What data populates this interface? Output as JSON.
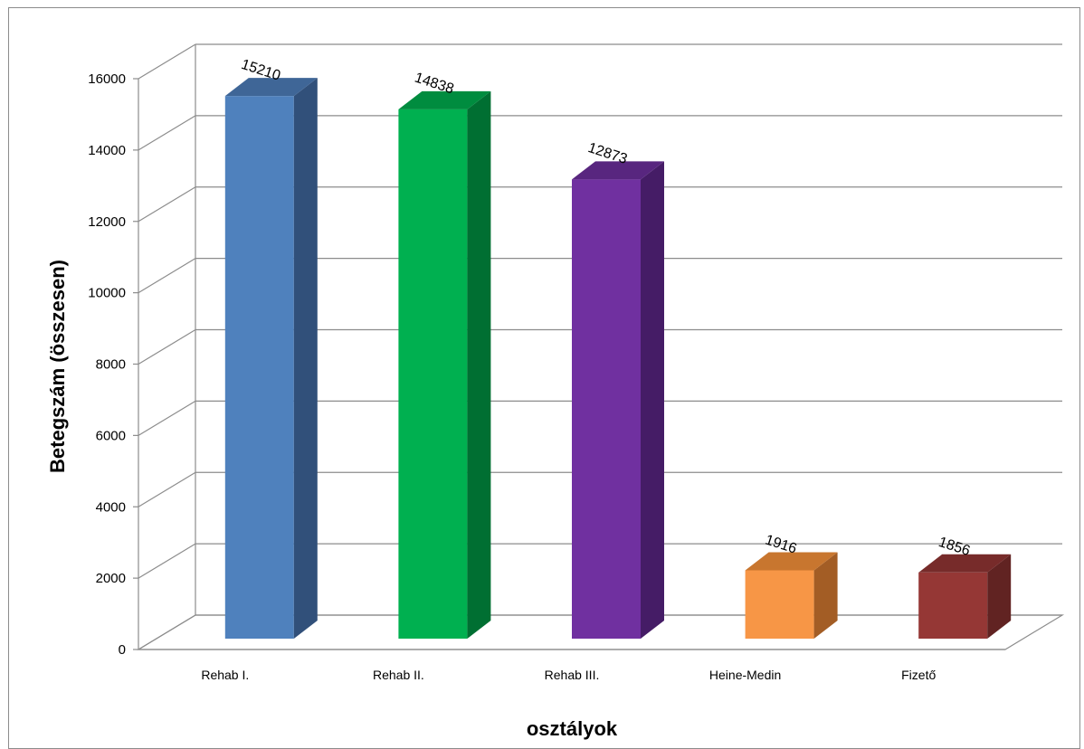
{
  "chart_data": {
    "type": "bar",
    "title": "",
    "xlabel": "osztályok",
    "ylabel": "Betegszám (összesen)",
    "categories": [
      "Rehab I.",
      "Rehab II.",
      "Rehab III.",
      "Heine-Medin",
      "Fizető"
    ],
    "values": [
      15210,
      14838,
      12873,
      1916,
      1856
    ],
    "data_labels": [
      "15210",
      "14838",
      "12873",
      "1916",
      "1856"
    ],
    "yticks": [
      0,
      2000,
      4000,
      6000,
      8000,
      10000,
      12000,
      14000,
      16000
    ],
    "ytick_labels": [
      "0",
      "2000",
      "4000",
      "6000",
      "8000",
      "10000",
      "12000",
      "14000",
      "16000"
    ],
    "ylim": [
      0,
      16000
    ],
    "grid": true,
    "legend": "none",
    "style": "3d-column",
    "colors": {
      "front": [
        "#4f81bd",
        "#00b050",
        "#7030a0",
        "#f79646",
        "#953735"
      ],
      "side": [
        "#31507a",
        "#006f32",
        "#451c66",
        "#a35d25",
        "#612322"
      ],
      "top": [
        "#3f6697",
        "#008c3f",
        "#58267f",
        "#c8762f",
        "#772b2a"
      ],
      "grid": "#8c8c8c",
      "axis": "#8c8c8c"
    }
  }
}
